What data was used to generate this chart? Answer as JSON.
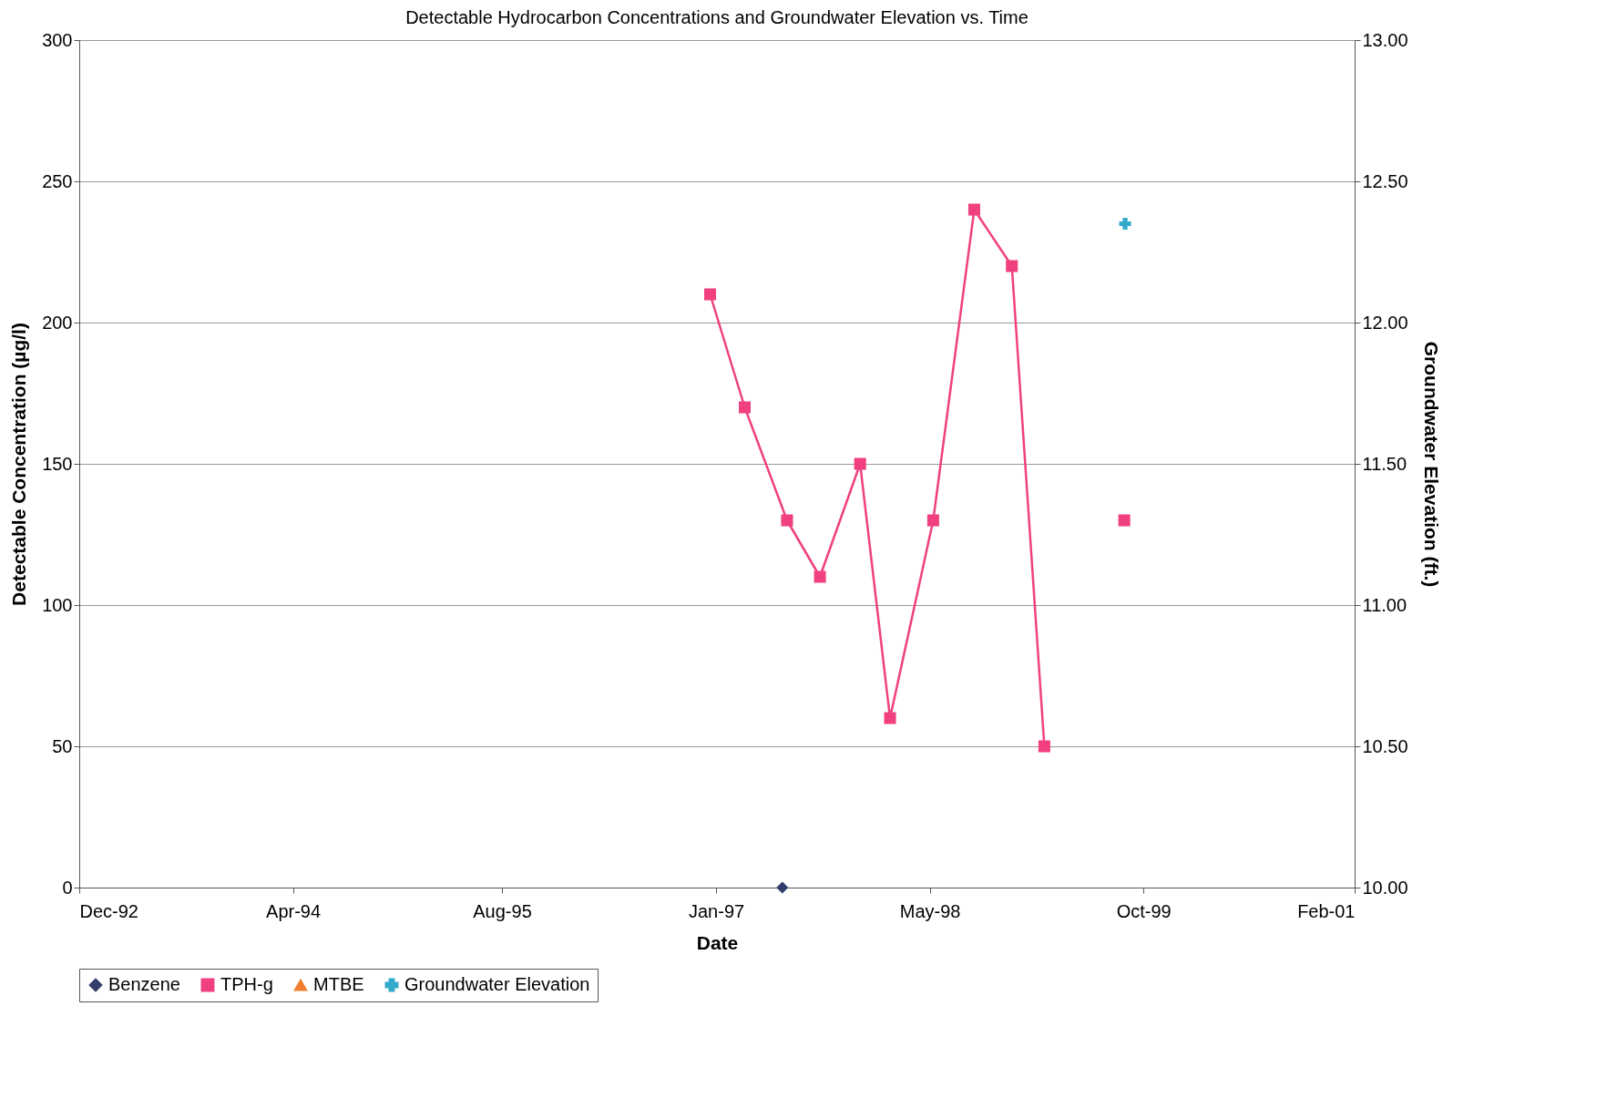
{
  "chart_data": {
    "type": "line",
    "title": "Detectable Hydrocarbon Concentrations and Groundwater Elevation vs. Time",
    "xlabel": "Date",
    "ylabel": "Detectable Concentration (µg/l)",
    "y2label": "Groundwater Elevation (ft.)",
    "xlim": [
      "1992-12-15",
      "2001-02-15"
    ],
    "xticks": [
      {
        "value": "1992-12-15",
        "label": "Dec-92"
      },
      {
        "value": "1994-04-29",
        "label": "Apr-94"
      },
      {
        "value": "1995-08-31",
        "label": "Aug-95"
      },
      {
        "value": "1997-01-13",
        "label": "Jan-97"
      },
      {
        "value": "1998-05-28",
        "label": "May-98"
      },
      {
        "value": "1999-10-10",
        "label": "Oct-99"
      },
      {
        "value": "2001-02-15",
        "label": "Feb-01"
      }
    ],
    "ylim": [
      0,
      300
    ],
    "yticks": [
      0,
      50,
      100,
      150,
      200,
      250,
      300
    ],
    "y2lim": [
      10,
      13
    ],
    "y2ticks": [
      {
        "value": 10,
        "label": "10.00"
      },
      {
        "value": 10.5,
        "label": "10.50"
      },
      {
        "value": 11,
        "label": "11.00"
      },
      {
        "value": 11.5,
        "label": "11.50"
      },
      {
        "value": 12,
        "label": "12.00"
      },
      {
        "value": 12.5,
        "label": "12.50"
      },
      {
        "value": 13,
        "label": "13.00"
      }
    ],
    "grid": "y",
    "legend": "bottom",
    "series": [
      {
        "name": "Benzene",
        "color": "#333d6b",
        "marker": "diamond",
        "x": [
          "1997-06-17"
        ],
        "values": [
          0
        ]
      },
      {
        "name": "TPH-g",
        "color": "#f0407f",
        "marker": "square",
        "x": [
          "1996-12-30",
          "1997-03-21",
          "1997-06-28",
          "1997-09-13",
          "1997-12-16",
          "1998-02-24",
          "1998-06-05",
          "1998-09-09",
          "1998-12-06",
          "1999-02-20",
          "1999-05-20",
          "1999-08-26"
        ],
        "values": [
          210,
          170,
          130,
          110,
          150,
          60,
          130,
          240,
          220,
          50,
          null,
          130
        ]
      },
      {
        "name": "MTBE",
        "color": "#f08030",
        "marker": "triangle"
      },
      {
        "name": "Groundwater Elevation",
        "color": "#33aacc",
        "marker": "cross",
        "axis": "y2",
        "x": [
          "1999-08-28"
        ],
        "values": [
          12.35
        ]
      }
    ]
  }
}
